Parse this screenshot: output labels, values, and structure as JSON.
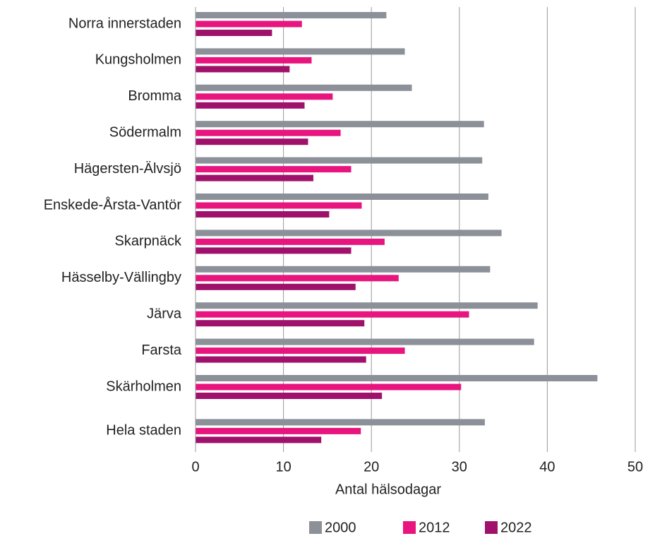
{
  "chart_data": {
    "type": "hbar",
    "xlabel": "Antal hälsodagar",
    "categories": [
      "Norra innerstaden",
      "Kungsholmen",
      "Bromma",
      "Södermalm",
      "Hägersten-Älvsjö",
      "Enskede-Årsta-Vantör",
      "Skarpnäck",
      "Hässelby-Vällingby",
      "Järva",
      "Farsta",
      "Skärholmen",
      "Hela staden"
    ],
    "series": [
      {
        "name": "2000",
        "color": "#8c9099",
        "values": [
          21.7,
          23.8,
          24.6,
          32.8,
          32.6,
          33.3,
          34.8,
          33.5,
          38.9,
          38.5,
          45.7,
          32.9
        ]
      },
      {
        "name": "2012",
        "color": "#e8157f",
        "values": [
          12.1,
          13.2,
          15.6,
          16.5,
          17.7,
          18.9,
          21.5,
          23.1,
          31.1,
          23.8,
          30.2,
          18.8
        ]
      },
      {
        "name": "2022",
        "color": "#a0116c",
        "values": [
          8.7,
          10.7,
          12.4,
          12.8,
          13.4,
          15.2,
          17.7,
          18.2,
          19.2,
          19.4,
          21.2,
          14.3
        ]
      }
    ],
    "xlim": [
      0,
      50
    ],
    "xticks": [
      0,
      10,
      20,
      30,
      40,
      50
    ],
    "grid": true,
    "legend": "bottom"
  }
}
